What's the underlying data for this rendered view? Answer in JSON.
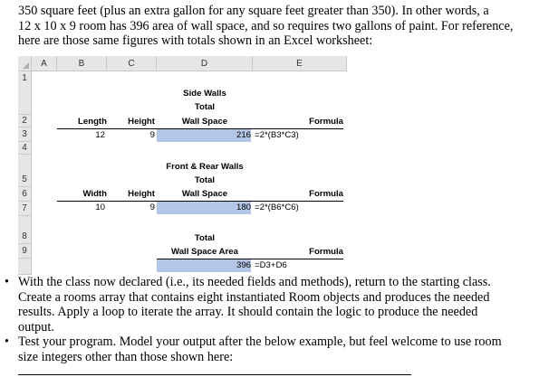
{
  "intro_lines": [
    "350 square feet (plus an extra gallon for any square feet greater than 350).  In other words, a",
    "12 x 10 x 9 room has 396 area of wall space, and so requires two gallons of paint.  For reference,",
    "here are those same figures with totals shown in an Excel worksheet:"
  ],
  "sheet": {
    "columns": [
      "A",
      "B",
      "C",
      "D",
      "E"
    ],
    "rows": [
      "1",
      "2",
      "3",
      "4",
      "5",
      "6",
      "7",
      "8",
      "9"
    ],
    "side_walls": {
      "title1": "Side Walls",
      "title2": "Total",
      "length": "Length",
      "height": "Height",
      "wall_space": "Wall Space",
      "formula_label": "Formula",
      "length_val": "12",
      "height_val": "9",
      "total_val": "216",
      "formula": "=2*(B3*C3)"
    },
    "front_walls": {
      "title1": "Front & Rear Walls",
      "title2": "Total",
      "width": "Width",
      "height": "Height",
      "wall_space": "Wall Space",
      "formula_label": "Formula",
      "width_val": "10",
      "height_val": "9",
      "total_val": "180",
      "formula": "=2*(B6*C6)"
    },
    "total": {
      "title": "Total",
      "label": "Wall Space Area",
      "formula_label": "Formula",
      "total_val": "396",
      "formula": "=D3+D6"
    }
  },
  "bullets": [
    [
      "With the class now declared (i.e., its needed fields and methods), return to the starting class.",
      "Create a rooms array that contains eight instantiated Room objects and produces the needed",
      "results.  Apply a loop to iterate the array.  It should contain the logic to produce the needed",
      "output."
    ],
    [
      "Test your program.  Model your output after the below example, but feel welcome to use room",
      "size integers other than those shown here:"
    ]
  ]
}
